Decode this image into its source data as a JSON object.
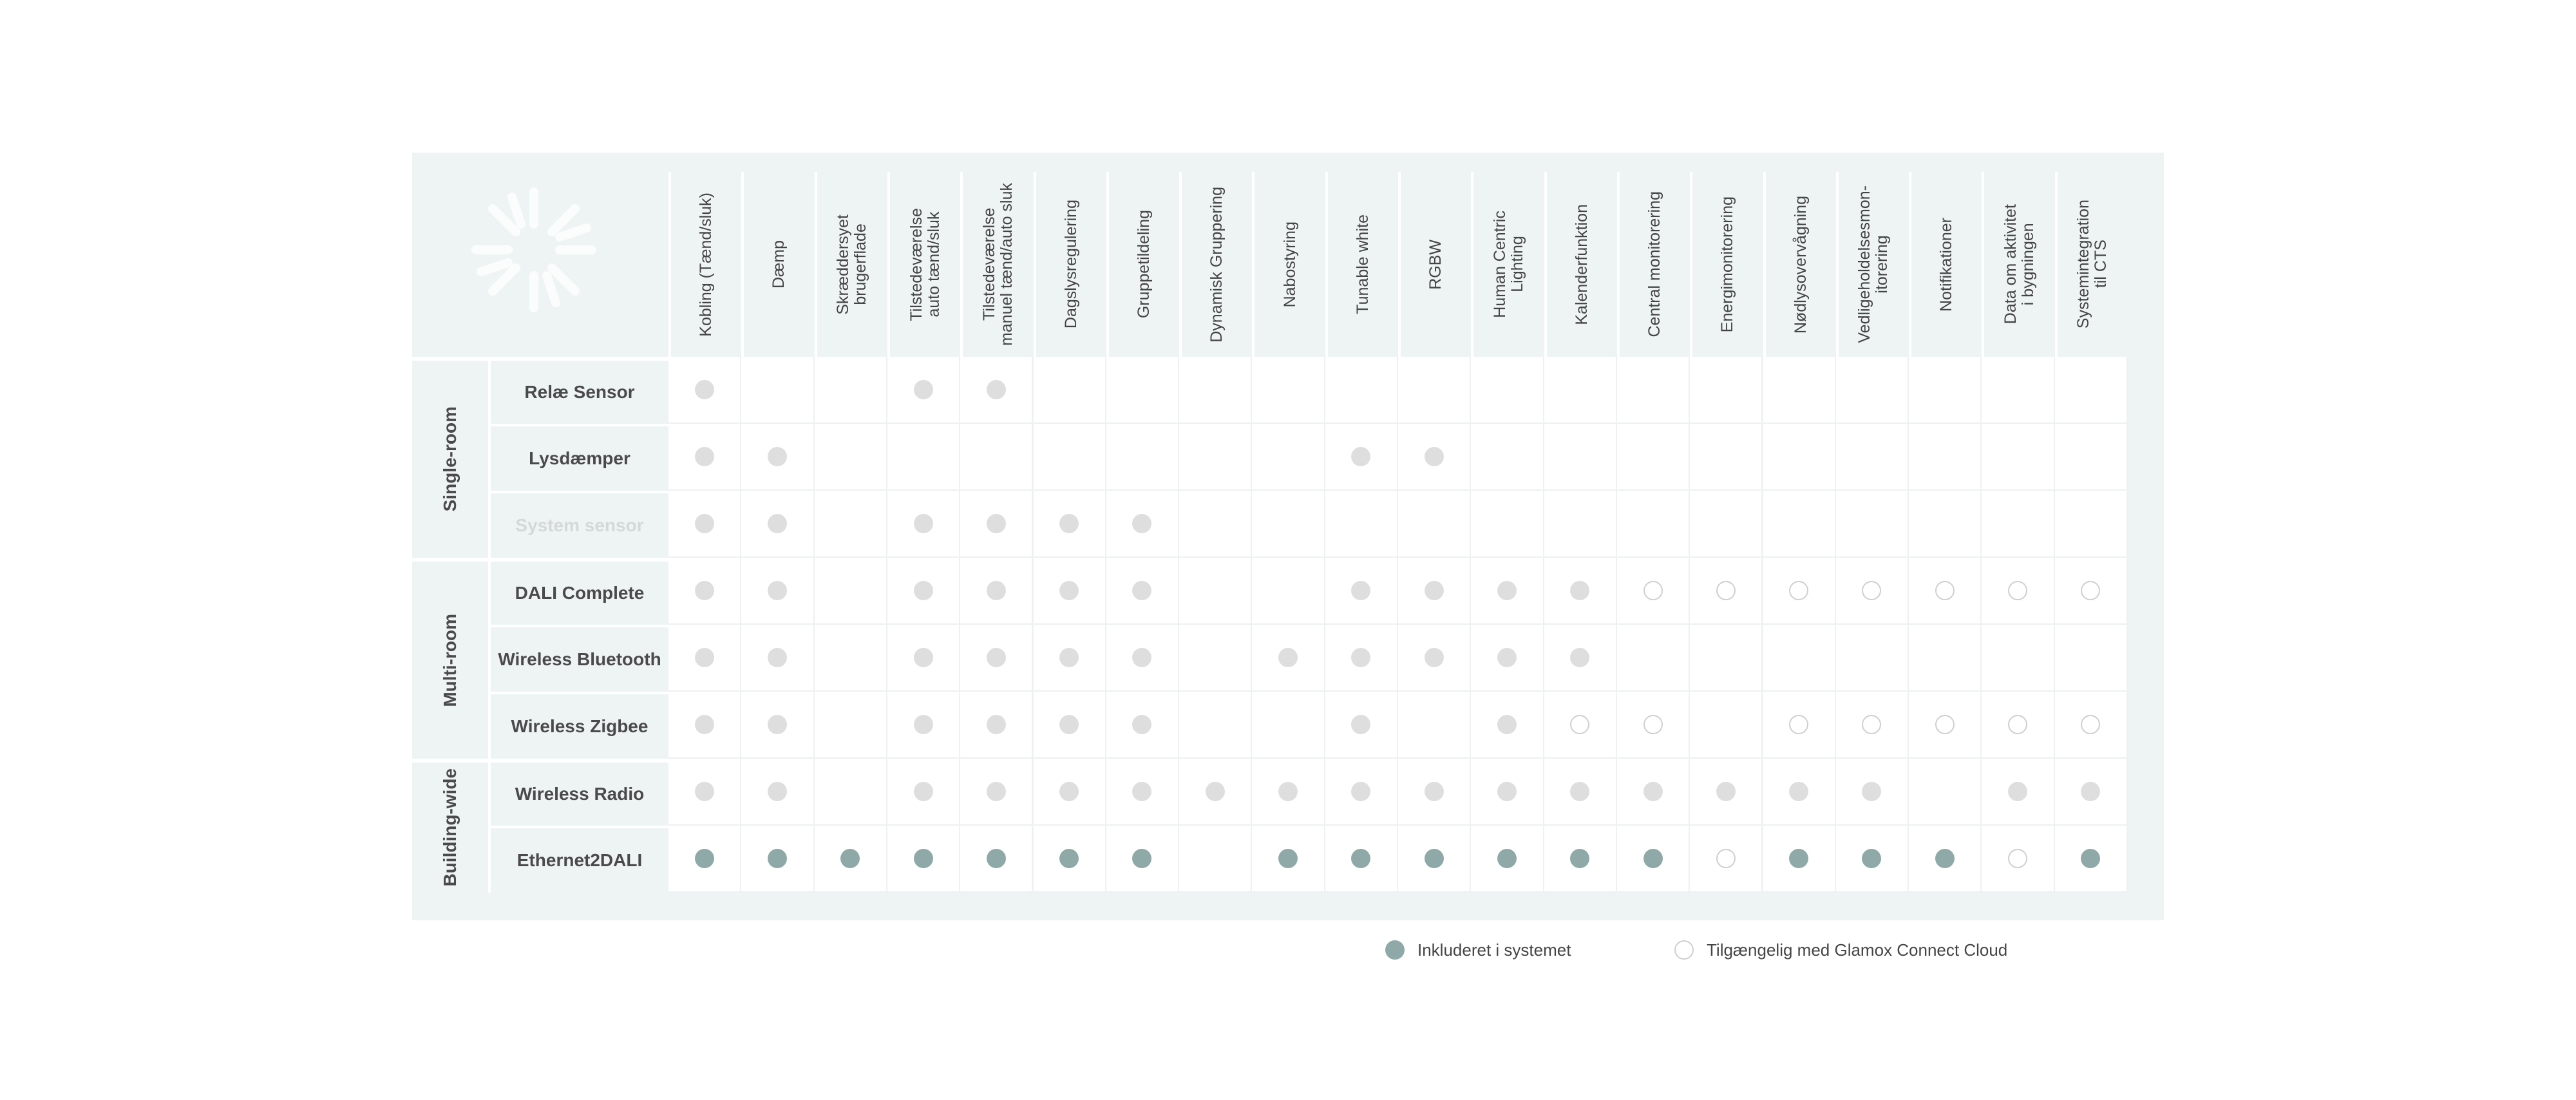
{
  "header": {
    "columns": [
      "Kobling (Tænd/sluk)",
      "Dæmp",
      "Skræddersyet\nbrugerflade",
      "Tilstedeværelse\nauto tænd/sluk",
      "Tilstedeværelse\nmanuel tænd/auto sluk",
      "Dagslysregulering",
      "Gruppetildeling",
      "Dynamisk Gruppering",
      "Nabostyring",
      "Tunable white",
      "RGBW",
      "Human Centric\nLighting",
      "Kalenderfunktion",
      "Central monitorering",
      "Energimonitorering",
      "Nødlysovervågning",
      "Vedligeholdelsesmon-\nitorering",
      "Notifikationer",
      "Data om aktivitet\ni bygningen",
      "Systemintegration\ntil CTS"
    ]
  },
  "groups": [
    {
      "label": "Single-room",
      "rows": [
        {
          "label": "Relæ Sensor",
          "color": "#dedede",
          "cells": [
            "filled",
            null,
            null,
            "filled",
            "filled",
            null,
            null,
            null,
            null,
            null,
            null,
            null,
            null,
            null,
            null,
            null,
            null,
            null,
            null,
            null
          ]
        },
        {
          "label": "Lysdæmper",
          "color": "#dedede",
          "cells": [
            "filled",
            "filled",
            null,
            null,
            null,
            null,
            null,
            null,
            null,
            "filled",
            "filled",
            null,
            null,
            null,
            null,
            null,
            null,
            null,
            null,
            null
          ]
        },
        {
          "label": "System sensor",
          "color": "#dedede",
          "dimmed": true,
          "cells": [
            "filled",
            "filled",
            null,
            "filled",
            "filled",
            "filled",
            "filled",
            null,
            null,
            null,
            null,
            null,
            null,
            null,
            null,
            null,
            null,
            null,
            null,
            null
          ]
        }
      ]
    },
    {
      "label": "Multi-room",
      "rows": [
        {
          "label": "DALI Complete",
          "color": "#dedede",
          "cells": [
            "filled",
            "filled",
            null,
            "filled",
            "filled",
            "filled",
            "filled",
            null,
            null,
            "filled",
            "filled",
            "filled",
            "filled",
            "open",
            "open",
            "open",
            "open",
            "open",
            "open",
            "open"
          ]
        },
        {
          "label": "Wireless Bluetooth",
          "color": "#dedede",
          "cells": [
            "filled",
            "filled",
            null,
            "filled",
            "filled",
            "filled",
            "filled",
            null,
            "filled",
            "filled",
            "filled",
            "filled",
            "filled",
            null,
            null,
            null,
            null,
            null,
            null,
            null
          ]
        },
        {
          "label": "Wireless Zigbee",
          "color": "#dedede",
          "cells": [
            "filled",
            "filled",
            null,
            "filled",
            "filled",
            "filled",
            "filled",
            null,
            null,
            "filled",
            null,
            "filled",
            "open",
            "open",
            null,
            "open",
            "open",
            "open",
            "open",
            "open"
          ]
        }
      ]
    },
    {
      "label": "Building-wide",
      "rows": [
        {
          "label": "Wireless Radio",
          "color": "#dedede",
          "cells": [
            "filled",
            "filled",
            null,
            "filled",
            "filled",
            "filled",
            "filled",
            "filled",
            "filled",
            "filled",
            "filled",
            "filled",
            "filled",
            "filled",
            "filled",
            "filled",
            "filled",
            null,
            "filled",
            "filled"
          ]
        },
        {
          "label": "Ethernet2DALI",
          "color": "#8fa9a8",
          "cells": [
            "filled",
            "filled",
            "filled",
            "filled",
            "filled",
            "filled",
            "filled",
            null,
            "filled",
            "filled",
            "filled",
            "filled",
            "filled",
            "filled",
            "open",
            "filled",
            "filled",
            "filled",
            "open",
            "filled"
          ]
        }
      ]
    }
  ],
  "legend": [
    {
      "label": "Inkluderet i systemet",
      "style": "filled",
      "color": "#8fa9a8"
    },
    {
      "label": "Tilgængelig med Glamox Connect Cloud",
      "style": "open",
      "color": "#cfcfcf"
    }
  ]
}
